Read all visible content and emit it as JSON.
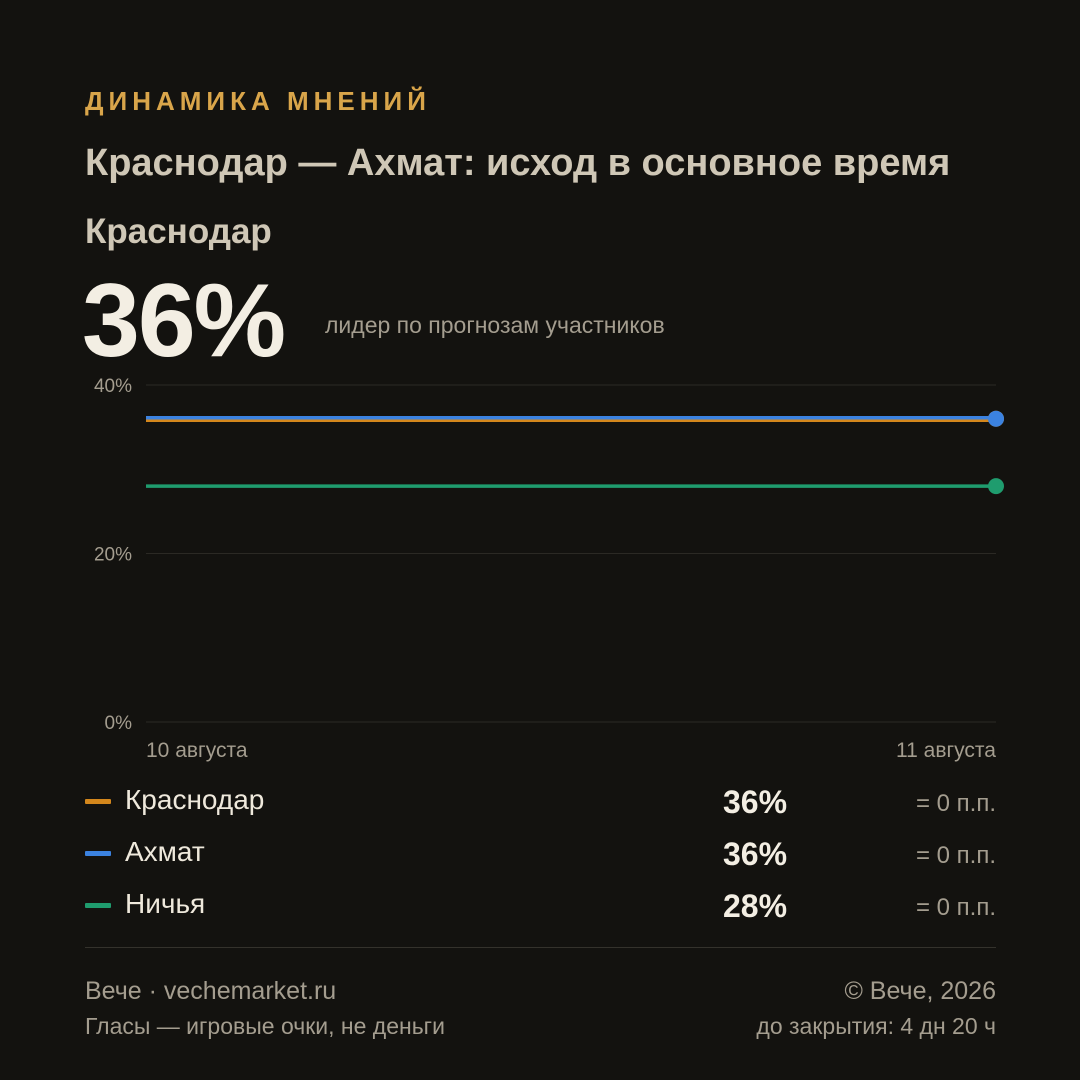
{
  "header": {
    "kicker": "ДИНАМИКА МНЕНИЙ",
    "title": "Краснодар — Ахмат: исход в основное время",
    "leader_name": "Краснодар",
    "leader_value": "36%",
    "leader_caption": "лидер по прогнозам участников"
  },
  "chart_data": {
    "type": "line",
    "title": "",
    "xlabel": "",
    "ylabel": "",
    "x": [
      "10 августа",
      "11 августа"
    ],
    "ylim": [
      0,
      40
    ],
    "yticks": [
      0,
      20,
      40
    ],
    "ytick_labels": [
      "0%",
      "20%",
      "40%"
    ],
    "grid": true,
    "series": [
      {
        "name": "Краснодар",
        "color": "#d4871c",
        "values": [
          36,
          36
        ]
      },
      {
        "name": "Ахмат",
        "color": "#3b82e0",
        "values": [
          36,
          36
        ]
      },
      {
        "name": "Ничья",
        "color": "#1f9c6e",
        "values": [
          28,
          28
        ]
      }
    ]
  },
  "legend": [
    {
      "name": "Краснодар",
      "color": "#d4871c",
      "value": "36%",
      "change": "= 0 п.п."
    },
    {
      "name": "Ахмат",
      "color": "#3b82e0",
      "value": "36%",
      "change": "= 0 п.п."
    },
    {
      "name": "Ничья",
      "color": "#1f9c6e",
      "value": "28%",
      "change": "= 0 п.п."
    }
  ],
  "footer": {
    "brand": "Вече · vechemarket.ru",
    "disclaimer": "Гласы — игровые очки, не деньги",
    "copyright": "© Вече, 2026",
    "closing": "до закрытия: 4 дн 20 ч"
  }
}
